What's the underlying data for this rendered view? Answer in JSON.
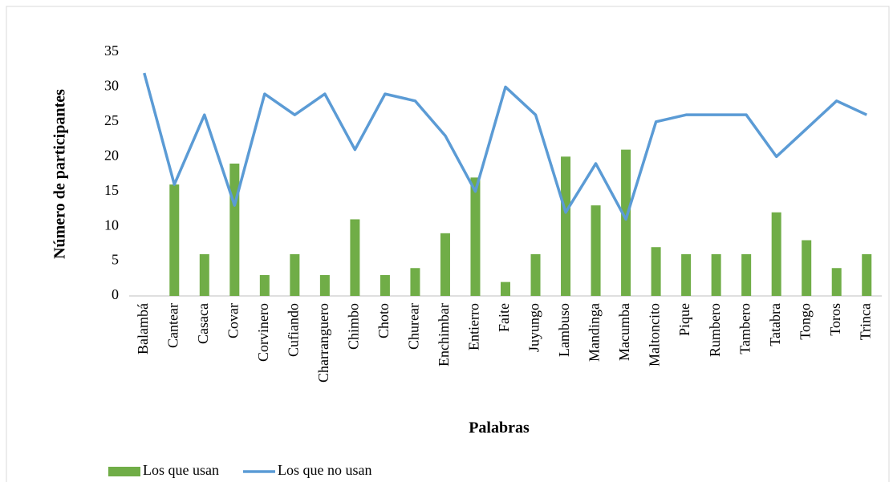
{
  "chart_data": {
    "type": "bar",
    "x_label": "Palabras",
    "y_label": "Número de participantes",
    "categories": [
      "Balambá",
      "Cantear",
      "Casaca",
      "Covar",
      "Corvinero",
      "Cufiando",
      "Charranguero",
      "Chimbo",
      "Choto",
      "Churear",
      "Enchimbar",
      "Entierro",
      "Faite",
      "Juyungo",
      "Lambuso",
      "Mandinga",
      "Macumba",
      "Maltoncito",
      "Pique",
      "Rumbero",
      "Tambero",
      "Tatabra",
      "Tongo",
      "Toros",
      "Trinca"
    ],
    "series": [
      {
        "name": "Los que usan",
        "type": "bar",
        "color": "#70ad47",
        "values": [
          0,
          16,
          6,
          19,
          3,
          6,
          3,
          11,
          3,
          4,
          9,
          17,
          2,
          6,
          20,
          13,
          21,
          7,
          6,
          6,
          6,
          12,
          8,
          4,
          6
        ]
      },
      {
        "name": "Los que no usan",
        "type": "line",
        "color": "#5b9bd5",
        "values": [
          32,
          16,
          26,
          13,
          29,
          26,
          29,
          21,
          29,
          28,
          23,
          15,
          30,
          26,
          12,
          19,
          11,
          25,
          26,
          26,
          26,
          20,
          24,
          28,
          26
        ]
      }
    ],
    "ylim": [
      0,
      35
    ],
    "yticks": [
      0,
      5,
      10,
      15,
      20,
      25,
      30,
      35
    ],
    "grid": false,
    "legend": "bottom"
  }
}
